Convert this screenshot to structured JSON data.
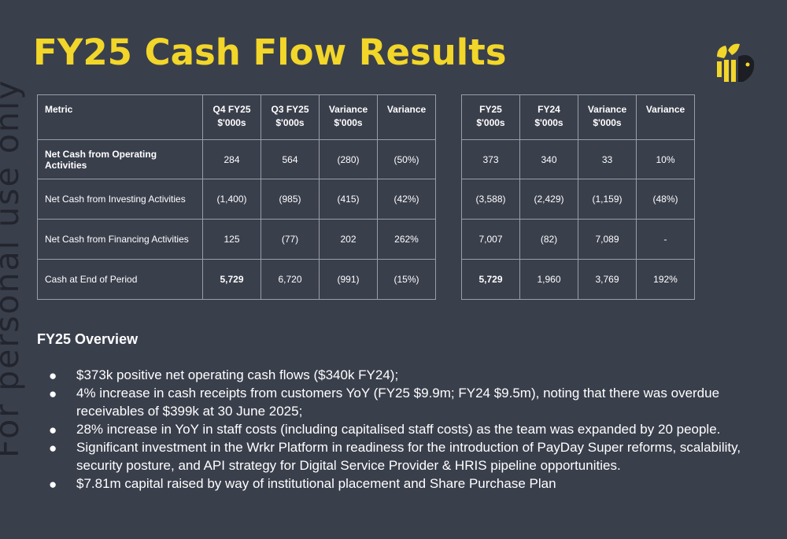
{
  "title": "FY25 Cash Flow Results",
  "watermark": "For personal use only",
  "quarterly_table": {
    "headers": [
      "Metric",
      "Q4 FY25\n$'000s",
      "Q3 FY25\n$'000s",
      "Variance\n$'000s",
      "Variance"
    ],
    "rows": [
      [
        "Net Cash from Operating Activities",
        "284",
        "564",
        "(280)",
        "(50%)"
      ],
      [
        "Net Cash from Investing Activities",
        "(1,400)",
        "(985)",
        "(415)",
        "(42%)"
      ],
      [
        "Net Cash from Financing Activities",
        "125",
        "(77)",
        "202",
        "262%"
      ],
      [
        "Cash at End of Period",
        "5,729",
        "6,720",
        "(991)",
        "(15%)"
      ]
    ]
  },
  "annual_table": {
    "headers": [
      "FY25\n$'000s",
      "FY24\n$'000s",
      "Variance\n$'000s",
      "Variance"
    ],
    "rows": [
      [
        "373",
        "340",
        "33",
        "10%"
      ],
      [
        "(3,588)",
        "(2,429)",
        "(1,159)",
        "(48%)"
      ],
      [
        "7,007",
        "(82)",
        "7,089",
        "-"
      ],
      [
        "5,729",
        "1,960",
        "3,769",
        "192%"
      ]
    ]
  },
  "overview": {
    "title": "FY25 Overview",
    "bullets": [
      "$373k positive net operating cash flows ($340k FY24);",
      "4% increase in cash receipts from customers YoY (FY25 $9.9m; FY24 $9.5m), noting that there was overdue receivables of $399k at 30 June 2025;",
      "28% increase in YoY in staff costs (including capitalised staff costs) as the team was expanded by 20 people.",
      "Significant investment in the Wrkr Platform in readiness for the introduction of PayDay Super reforms, scalability, security posture, and API strategy for Digital Service Provider & HRIS pipeline opportunities.",
      "$7.81m capital raised by way of institutional placement and Share Purchase Plan"
    ]
  },
  "colors": {
    "background": "#3a3f4c",
    "title": "#f2d629",
    "logo": "#f2d629",
    "border": "#9a9ea8"
  },
  "logo_icon": "wrkr-bee-logo-icon"
}
